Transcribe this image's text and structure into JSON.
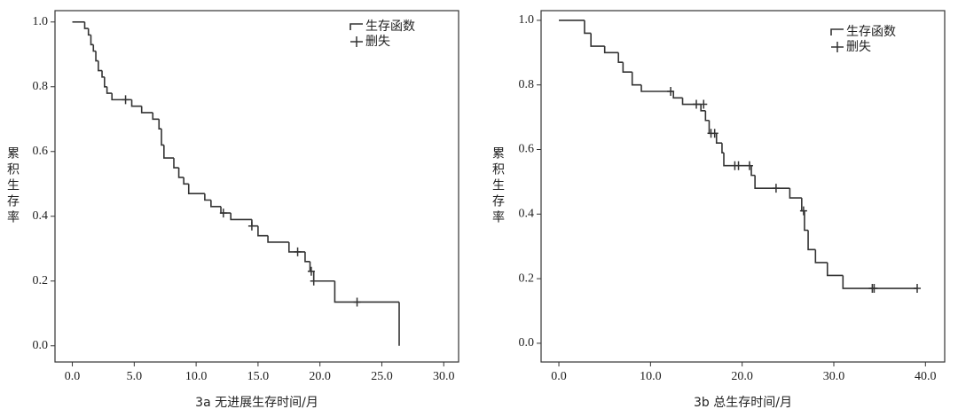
{
  "chart_data": [
    {
      "type": "line",
      "xlabel": "3a  无进展生存时间/月",
      "ylabel": "累积生存率",
      "xlim": [
        -1.4,
        31.2
      ],
      "ylim": [
        -0.05,
        1.035
      ],
      "xticks": [
        {
          "value": 0,
          "label": "0.0"
        },
        {
          "value": 5,
          "label": "5.0"
        },
        {
          "value": 10,
          "label": "10.0"
        },
        {
          "value": 15,
          "label": "15.0"
        },
        {
          "value": 20,
          "label": "20.0"
        },
        {
          "value": 25,
          "label": "25.0"
        },
        {
          "value": 30,
          "label": "30.0"
        }
      ],
      "yticks": [
        {
          "value": 0,
          "label": "0.0"
        },
        {
          "value": 0.2,
          "label": "0.2"
        },
        {
          "value": 0.4,
          "label": "0.4"
        },
        {
          "value": 0.6,
          "label": "0.6"
        },
        {
          "value": 0.8,
          "label": "0.8"
        },
        {
          "value": 1,
          "label": "1.0"
        }
      ],
      "legend": "upper right",
      "series": [
        {
          "name": "生存函数",
          "color": "#333333",
          "style": "step",
          "x": [
            0,
            1.0,
            1.3,
            1.5,
            1.7,
            1.9,
            2.1,
            2.4,
            2.6,
            2.8,
            3.2,
            4.8,
            5.6,
            6.5,
            7.0,
            7.2,
            7.4,
            8.2,
            8.6,
            9.0,
            9.4,
            10.7,
            11.2,
            12.0,
            12.8,
            14.5,
            15.0,
            15.8,
            17.5,
            18.8,
            19.2,
            19.5,
            21.2,
            26.4
          ],
          "values": [
            1.0,
            0.98,
            0.96,
            0.93,
            0.91,
            0.88,
            0.85,
            0.83,
            0.8,
            0.78,
            0.76,
            0.74,
            0.72,
            0.7,
            0.67,
            0.62,
            0.58,
            0.55,
            0.52,
            0.5,
            0.47,
            0.45,
            0.43,
            0.41,
            0.39,
            0.37,
            0.34,
            0.32,
            0.29,
            0.26,
            0.23,
            0.2,
            0.135,
            0.0
          ]
        },
        {
          "name": "删失",
          "color": "#333333",
          "style": "censor",
          "x": [
            4.3,
            12.2,
            14.5,
            18.2,
            19.3,
            19.5,
            23.0
          ],
          "values": [
            0.76,
            0.41,
            0.37,
            0.29,
            0.23,
            0.2,
            0.135
          ]
        }
      ]
    },
    {
      "type": "line",
      "xlabel": "3b  总生存时间/月",
      "ylabel": "累积生存率",
      "xlim": [
        -1.94,
        42.1
      ],
      "ylim": [
        -0.058,
        1.03
      ],
      "xticks": [
        {
          "value": 0,
          "label": "0.0"
        },
        {
          "value": 10,
          "label": "10.0"
        },
        {
          "value": 20,
          "label": "20.0"
        },
        {
          "value": 30,
          "label": "30.0"
        },
        {
          "value": 40,
          "label": "40.0"
        }
      ],
      "yticks": [
        {
          "value": 0,
          "label": "0.0"
        },
        {
          "value": 0.2,
          "label": "0.2"
        },
        {
          "value": 0.4,
          "label": "0.4"
        },
        {
          "value": 0.6,
          "label": "0.6"
        },
        {
          "value": 0.8,
          "label": "0.8"
        },
        {
          "value": 1,
          "label": "1.0"
        }
      ],
      "legend": "upper right",
      "series": [
        {
          "name": "生存函数",
          "color": "#333333",
          "style": "step",
          "x": [
            0,
            2.8,
            3.5,
            5.0,
            6.5,
            7.0,
            8.0,
            9.0,
            12.5,
            13.5,
            15.5,
            16.0,
            16.4,
            17.2,
            17.8,
            18.0,
            21.0,
            21.4,
            25.2,
            26.5,
            26.8,
            27.2,
            28.0,
            29.3,
            31.0,
            39.1
          ],
          "values": [
            1.0,
            0.96,
            0.92,
            0.9,
            0.87,
            0.84,
            0.8,
            0.78,
            0.76,
            0.74,
            0.72,
            0.69,
            0.65,
            0.62,
            0.59,
            0.55,
            0.52,
            0.48,
            0.45,
            0.41,
            0.35,
            0.29,
            0.25,
            0.21,
            0.17,
            0.17
          ]
        },
        {
          "name": "删失",
          "color": "#333333",
          "style": "censor",
          "x": [
            12.2,
            15.0,
            15.8,
            16.6,
            17.0,
            19.2,
            19.6,
            20.8,
            23.7,
            26.7,
            34.2,
            34.4,
            39.1
          ],
          "values": [
            0.78,
            0.74,
            0.74,
            0.65,
            0.65,
            0.55,
            0.55,
            0.55,
            0.48,
            0.41,
            0.17,
            0.17,
            0.17
          ]
        }
      ]
    }
  ]
}
